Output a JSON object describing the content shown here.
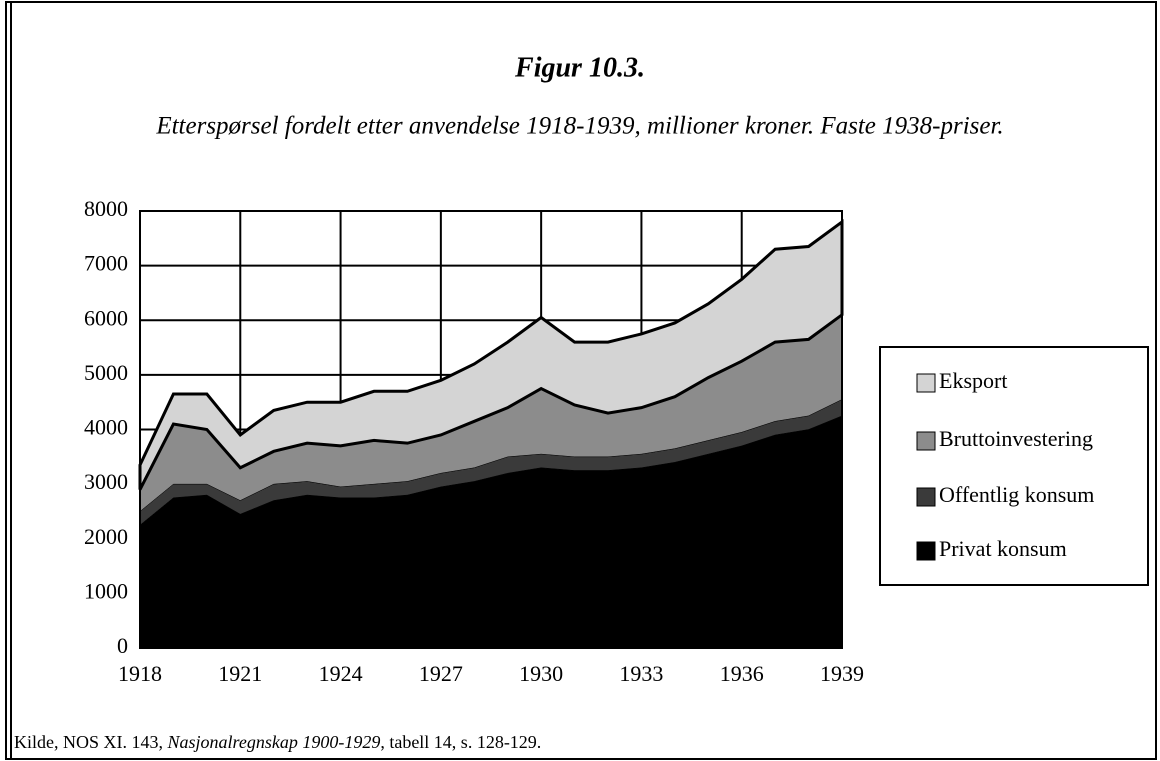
{
  "chart_data": {
    "type": "stacked_area",
    "title": "Figur 10.3.",
    "subtitle": "Etterspørsel fordelt etter anvendelse 1918-1939, millioner kroner. Faste 1938-priser.",
    "source": [
      "Kilde, NOS XI. 143, ",
      "Nasjonalregnskap 1900-1929",
      ", tabell 14, s. 128-129."
    ],
    "x": [
      1918,
      1919,
      1920,
      1921,
      1922,
      1923,
      1924,
      1925,
      1926,
      1927,
      1928,
      1929,
      1930,
      1931,
      1932,
      1933,
      1934,
      1935,
      1936,
      1937,
      1938,
      1939
    ],
    "series": [
      {
        "name": "Privat konsum",
        "color": "#000000",
        "values": [
          2250,
          2750,
          2800,
          2450,
          2700,
          2800,
          2750,
          2750,
          2800,
          2950,
          3050,
          3200,
          3300,
          3250,
          3250,
          3300,
          3400,
          3550,
          3700,
          3900,
          4000,
          4250
        ]
      },
      {
        "name": "Offentlig konsum",
        "color": "#3a3a3a",
        "values": [
          250,
          250,
          200,
          250,
          300,
          250,
          200,
          250,
          250,
          250,
          250,
          300,
          250,
          250,
          250,
          250,
          250,
          250,
          250,
          250,
          250,
          300
        ]
      },
      {
        "name": "Bruttoinvestering",
        "color": "#8c8c8c",
        "values": [
          400,
          1100,
          1000,
          600,
          600,
          700,
          750,
          800,
          700,
          700,
          850,
          900,
          1200,
          950,
          800,
          850,
          950,
          1150,
          1300,
          1450,
          1400,
          1550
        ]
      },
      {
        "name": "Eksport",
        "color": "#d4d4d4",
        "values": [
          450,
          550,
          650,
          600,
          750,
          750,
          800,
          900,
          950,
          1000,
          1050,
          1200,
          1300,
          1150,
          1300,
          1350,
          1350,
          1350,
          1500,
          1700,
          1700,
          1700
        ]
      }
    ],
    "xlim": [
      1918,
      1939
    ],
    "xticks": [
      1918,
      1921,
      1924,
      1927,
      1930,
      1933,
      1936,
      1939
    ],
    "ylim": [
      0,
      8000
    ],
    "yticks": [
      0,
      1000,
      2000,
      3000,
      4000,
      5000,
      6000,
      7000,
      8000
    ],
    "grid": true,
    "legend": "right"
  }
}
